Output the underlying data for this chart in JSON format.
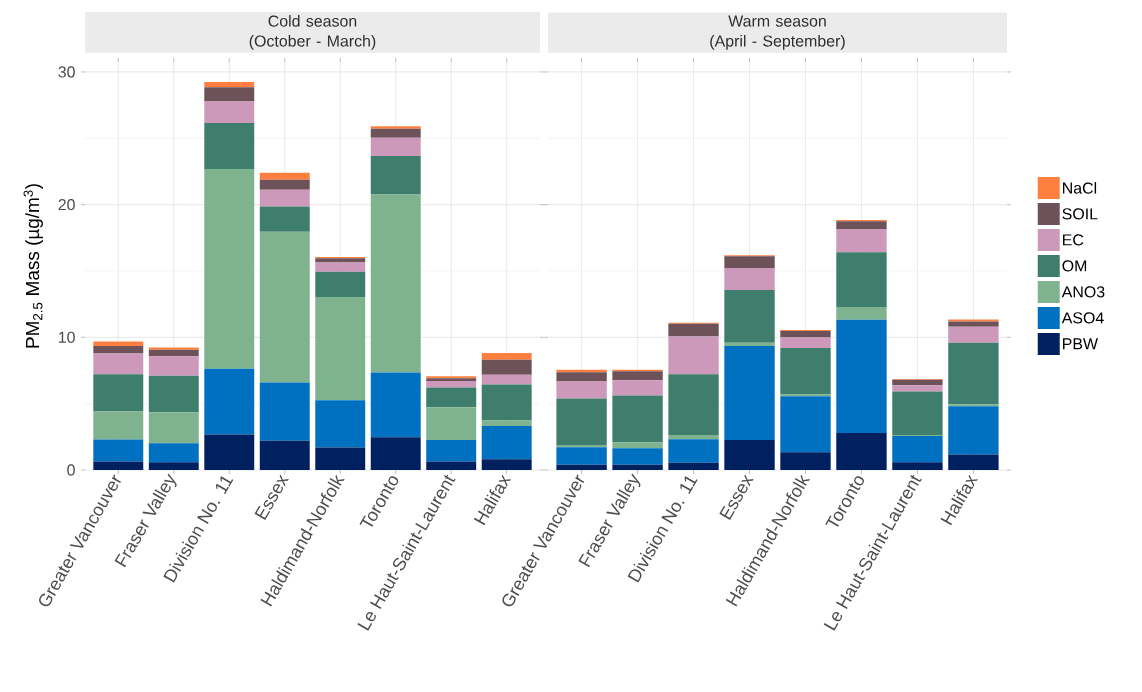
{
  "chart_data": [
    {
      "type": "bar",
      "stacked": true,
      "title": "Cold season",
      "subtitle": "(October - March)",
      "ylabel": "PM$_{2.5}$ Mass (µg/m$^{3}$)",
      "categories": [
        "Greater Vancouver",
        "Fraser Valley",
        "Division No. 11",
        "Essex",
        "Haldimand-Norfolk",
        "Toronto",
        "Le Haut-Saint-Laurent",
        "Halifax"
      ],
      "ylim": [
        0,
        30.75
      ],
      "yticks": [
        0,
        10,
        20,
        30
      ],
      "grid": true,
      "series": [
        {
          "color": "#012060",
          "values": [
            0.65,
            0.58,
            2.67,
            2.21,
            1.69,
            2.47,
            0.65,
            0.81
          ]
        },
        {
          "color": "#0070c0",
          "values": [
            1.64,
            1.43,
            4.96,
            4.38,
            3.57,
            4.88,
            1.62,
            2.51
          ]
        },
        {
          "color": "#7fb38f",
          "values": [
            2.11,
            2.34,
            15.05,
            11.36,
            7.78,
            13.42,
            2.46,
            0.41
          ]
        },
        {
          "color": "#3f7d6c",
          "values": [
            2.82,
            2.75,
            3.47,
            1.91,
            1.91,
            2.89,
            1.49,
            2.71
          ]
        },
        {
          "color": "#cc99bb",
          "values": [
            1.56,
            1.48,
            1.66,
            1.26,
            0.68,
            1.38,
            0.48,
            0.73
          ]
        },
        {
          "color": "#6e525a",
          "values": [
            0.56,
            0.48,
            1.03,
            0.75,
            0.33,
            0.68,
            0.22,
            1.14
          ]
        },
        {
          "color": "#ff7f40",
          "values": [
            0.35,
            0.18,
            0.41,
            0.53,
            0.1,
            0.18,
            0.15,
            0.5
          ]
        }
      ]
    },
    {
      "type": "bar",
      "stacked": true,
      "title": "Warm season",
      "subtitle": "(April - September)",
      "categories": [
        "Greater Vancouver",
        "Fraser Valley",
        "Division No. 11",
        "Essex",
        "Haldimand-Norfolk",
        "Toronto",
        "Le Haut-Saint-Laurent",
        "Halifax"
      ],
      "ylim": [
        0,
        30.75
      ],
      "yticks": [
        0,
        10,
        20,
        30
      ],
      "tick_labels": "x",
      "grid": true,
      "legend": "right",
      "series": [
        {
          "name": "PBW",
          "color": "#012060",
          "values": [
            0.4,
            0.4,
            0.55,
            2.27,
            1.33,
            2.79,
            0.58,
            1.16
          ]
        },
        {
          "name": "ASO4",
          "color": "#0070c0",
          "values": [
            1.31,
            1.24,
            1.77,
            7.07,
            4.23,
            8.54,
            1.99,
            3.65
          ]
        },
        {
          "name": "ANO3",
          "color": "#7fb38f",
          "values": [
            0.18,
            0.45,
            0.32,
            0.25,
            0.13,
            0.95,
            0.07,
            0.12
          ]
        },
        {
          "name": "OM",
          "color": "#3f7d6c",
          "values": [
            3.5,
            3.52,
            4.58,
            3.98,
            3.5,
            4.13,
            3.28,
            4.66
          ]
        },
        {
          "name": "EC",
          "color": "#cc99bb",
          "values": [
            1.31,
            1.16,
            2.85,
            1.66,
            0.8,
            1.76,
            0.47,
            1.21
          ]
        },
        {
          "name": "SOIL",
          "color": "#6e525a",
          "values": [
            0.67,
            0.68,
            0.95,
            0.88,
            0.48,
            0.58,
            0.41,
            0.4
          ]
        },
        {
          "name": "NaCl",
          "color": "#ff7f40",
          "values": [
            0.18,
            0.1,
            0.08,
            0.07,
            0.08,
            0.1,
            0.05,
            0.15
          ]
        }
      ]
    }
  ]
}
